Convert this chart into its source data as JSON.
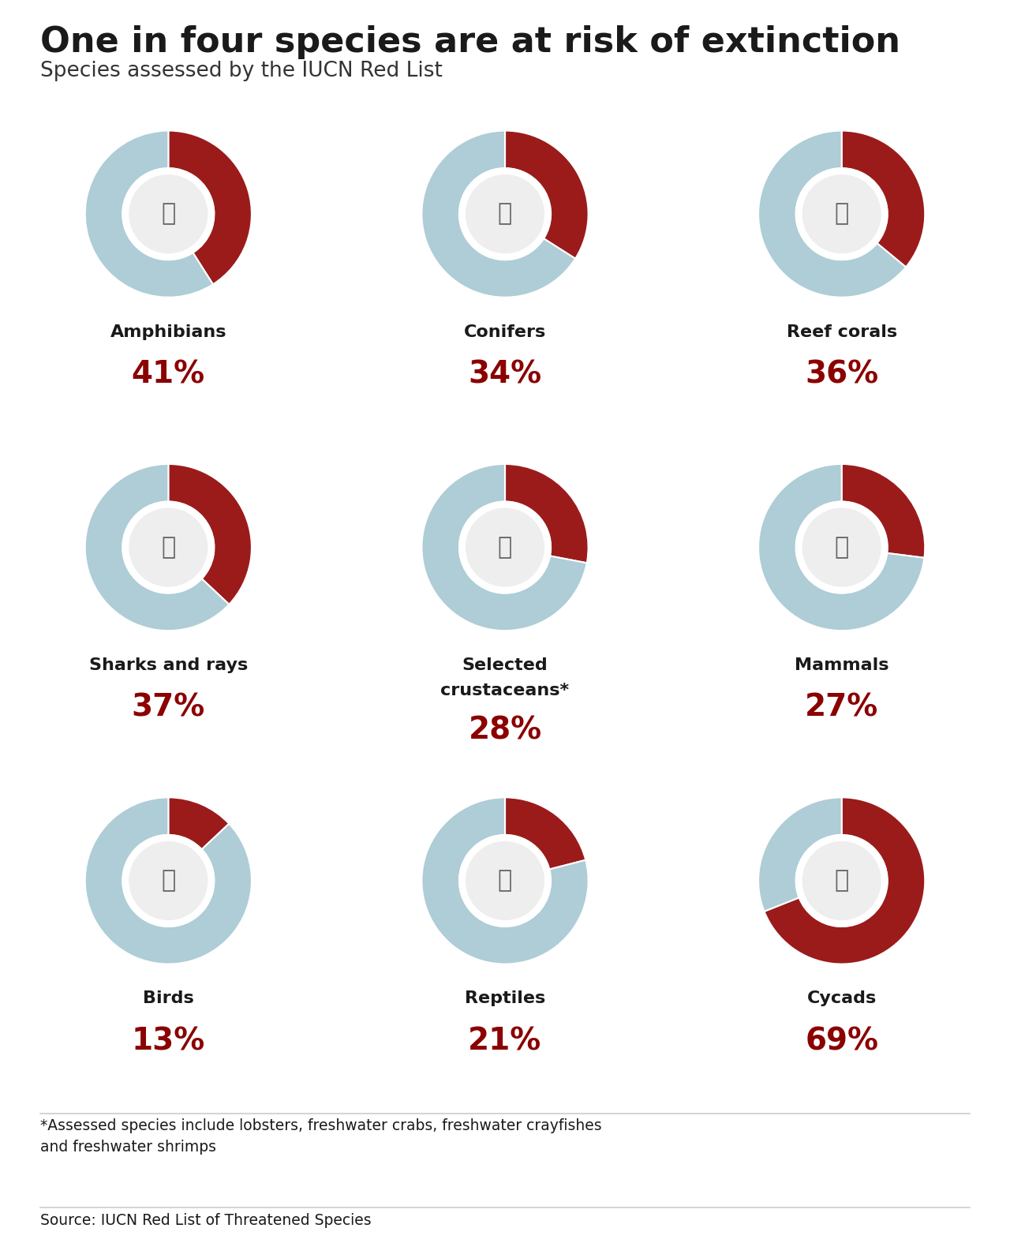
{
  "title": "One in four species are at risk of extinction",
  "subtitle": "Species assessed by the IUCN Red List",
  "footnote": "*Assessed species include lobsters, freshwater crabs, freshwater crayfishes\nand freshwater shrimps",
  "source": "Source: IUCN Red List of Threatened Species",
  "background_color": "#ffffff",
  "title_color": "#1a1a1a",
  "subtitle_color": "#333333",
  "percent_color": "#8b0000",
  "label_color": "#1a1a1a",
  "donut_at_risk_color": "#9b1b1b",
  "donut_safe_color": "#aecdd6",
  "icon_color": "#666666",
  "species": [
    {
      "name": "Amphibians",
      "pct": 41,
      "row": 0,
      "col": 0,
      "icon_char": "🐸"
    },
    {
      "name": "Conifers",
      "pct": 34,
      "row": 0,
      "col": 1,
      "icon_char": "🌲"
    },
    {
      "name": "Reef corals",
      "pct": 36,
      "row": 0,
      "col": 2,
      "icon_char": "🩸"
    },
    {
      "name": "Sharks and rays",
      "pct": 37,
      "row": 1,
      "col": 0,
      "icon_char": "🦈"
    },
    {
      "name": "Selected\ncrustaceans*",
      "pct": 28,
      "row": 1,
      "col": 1,
      "icon_char": "🦐"
    },
    {
      "name": "Mammals",
      "pct": 27,
      "row": 1,
      "col": 2,
      "icon_char": "🐻"
    },
    {
      "name": "Birds",
      "pct": 13,
      "row": 2,
      "col": 0,
      "icon_char": "🐦"
    },
    {
      "name": "Reptiles",
      "pct": 21,
      "row": 2,
      "col": 1,
      "icon_char": "🦎"
    },
    {
      "name": "Cycads",
      "pct": 69,
      "row": 2,
      "col": 2,
      "icon_char": "🌴"
    }
  ]
}
